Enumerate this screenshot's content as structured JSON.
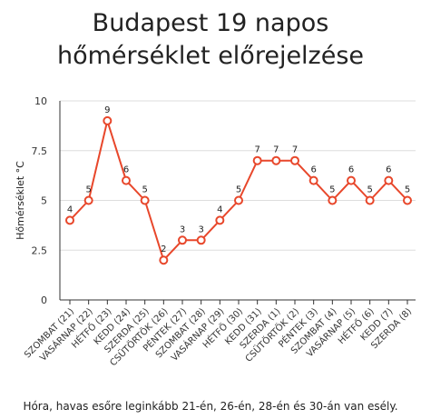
{
  "chart_data": {
    "type": "line",
    "title_line1": "Budapest 19 napos",
    "title_line2": "hőmérséklet előrejelzése",
    "ylabel": "Hőmérséklet °C",
    "xlabel": "",
    "ylim": [
      0,
      10
    ],
    "yticks": [
      "0",
      "2.5",
      "5",
      "7.5",
      "10"
    ],
    "ytick_values": [
      0,
      2.5,
      5,
      7.5,
      10
    ],
    "grid": true,
    "categories": [
      "SZOMBAT (21)",
      "VASÁRNAP (22)",
      "HÉTFŐ (23)",
      "KEDD (24)",
      "SZERDA (25)",
      "CSÜTÖRTÖK (26)",
      "PÉNTEK (27)",
      "SZOMBAT (28)",
      "VASÁRNAP (29)",
      "HÉTFŐ (30)",
      "KEDD (31)",
      "SZERDA (1)",
      "CSÜTÖRTÖK (2)",
      "PÉNTEK (3)",
      "SZOMBAT (4)",
      "VASÁRNAP (5)",
      "HÉTFŐ (6)",
      "KEDD (7)",
      "SZERDA (8)"
    ],
    "series": [
      {
        "values": [
          4,
          5,
          9,
          6,
          5,
          2,
          3,
          3,
          4,
          5,
          7,
          7,
          7,
          6,
          5,
          6,
          5,
          6,
          5
        ]
      }
    ],
    "line_color": "#e8472b",
    "grid_color": "#dddddd",
    "axis_color": "#333333"
  },
  "footnote": "Hóra, havas esőre leginkább 21-én, 26-én, 28-én és 30-án van esély."
}
